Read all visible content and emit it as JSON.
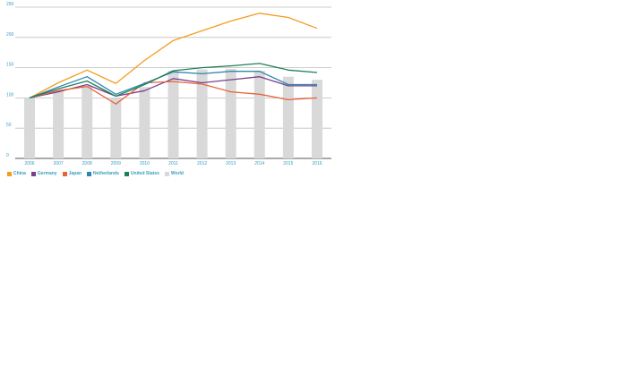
{
  "chart_data": {
    "type": "bar+line",
    "categories": [
      "2006",
      "2007",
      "2008",
      "2009",
      "2010",
      "2011",
      "2012",
      "2013",
      "2014",
      "2015",
      "2016"
    ],
    "ylim": [
      0,
      250
    ],
    "yticks": [
      "0",
      "50",
      "100",
      "150",
      "200",
      "250"
    ],
    "grid": true,
    "legend_position": "bottom-left",
    "bars": {
      "name": "World",
      "color": "#d9d9d9",
      "values": [
        100,
        112,
        120,
        100,
        118,
        145,
        147,
        148,
        145,
        135,
        130
      ]
    },
    "series": [
      {
        "name": "China",
        "color": "#f39c1f",
        "values": [
          100,
          125,
          146,
          124,
          162,
          195,
          211,
          227,
          240,
          233,
          215
        ]
      },
      {
        "name": "Germany",
        "color": "#7a3f8c",
        "values": [
          100,
          110,
          122,
          103,
          112,
          132,
          125,
          130,
          135,
          120,
          120
        ]
      },
      {
        "name": "Japan",
        "color": "#e8623a",
        "values": [
          100,
          112,
          119,
          90,
          125,
          127,
          123,
          110,
          106,
          97,
          100
        ]
      },
      {
        "name": "Netherlands",
        "color": "#2e86b0",
        "values": [
          100,
          118,
          135,
          106,
          124,
          143,
          140,
          144,
          144,
          122,
          122
        ]
      },
      {
        "name": "United States",
        "color": "#1f7f5a",
        "values": [
          100,
          115,
          128,
          103,
          122,
          145,
          150,
          153,
          157,
          146,
          142
        ]
      }
    ]
  }
}
